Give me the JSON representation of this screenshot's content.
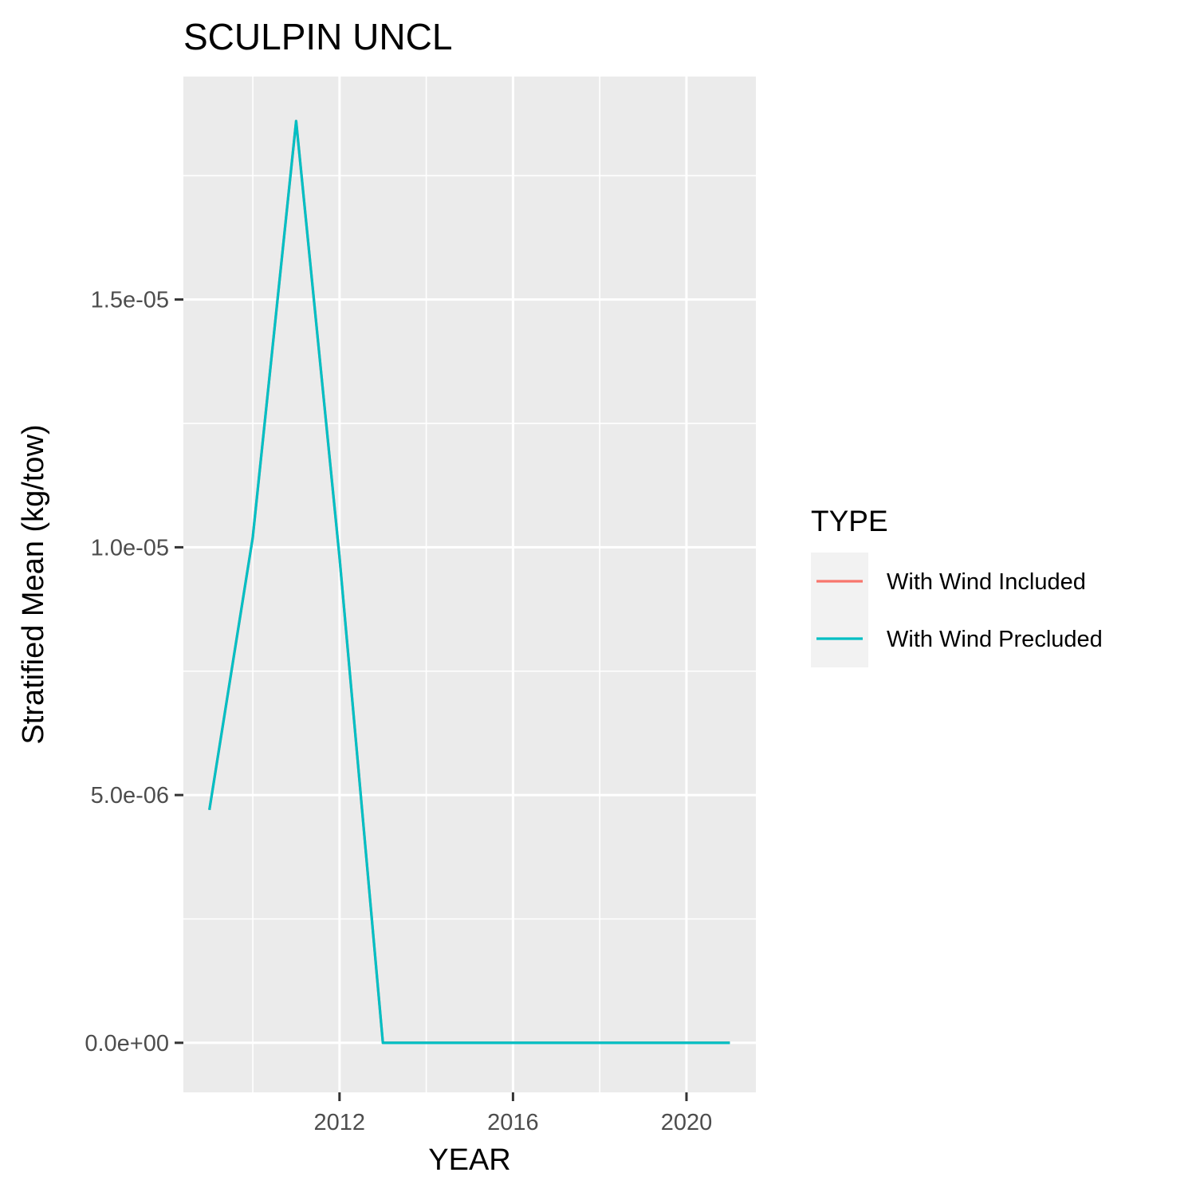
{
  "chart_data": {
    "type": "line",
    "title": "SCULPIN UNCL",
    "xlabel": "YEAR",
    "ylabel": "Stratified Mean (kg/tow)",
    "x": [
      2009,
      2010,
      2011,
      2012,
      2013,
      2014,
      2015,
      2016,
      2017,
      2018,
      2019,
      2020,
      2021
    ],
    "series": [
      {
        "name": "With Wind Included",
        "color": "#F8766D",
        "values": [
          4.7e-06,
          1.02e-05,
          1.86e-05,
          9.8e-06,
          0,
          0,
          0,
          0,
          0,
          0,
          0,
          0,
          0
        ]
      },
      {
        "name": "With Wind Precluded",
        "color": "#00BFC4",
        "values": [
          4.7e-06,
          1.02e-05,
          1.86e-05,
          9.8e-06,
          0,
          0,
          0,
          0,
          0,
          0,
          0,
          0,
          0
        ]
      }
    ],
    "xlim": [
      2008.4,
      2021.6
    ],
    "ylim": [
      -1e-06,
      1.95e-05
    ],
    "x_ticks": [
      2012,
      2016,
      2020
    ],
    "x_tick_labels": [
      "2012",
      "2016",
      "2020"
    ],
    "x_minor_ticks": [
      2010,
      2014,
      2018
    ],
    "y_ticks": [
      0,
      5e-06,
      1e-05,
      1.5e-05
    ],
    "y_tick_labels": [
      "0.0e+00",
      "5.0e-06",
      "1.0e-05",
      "1.5e-05"
    ],
    "y_minor_ticks": [
      2.5e-06,
      7.5e-06,
      1.25e-05,
      1.75e-05
    ],
    "grid": true,
    "legend": {
      "title": "TYPE",
      "position": "right"
    }
  }
}
